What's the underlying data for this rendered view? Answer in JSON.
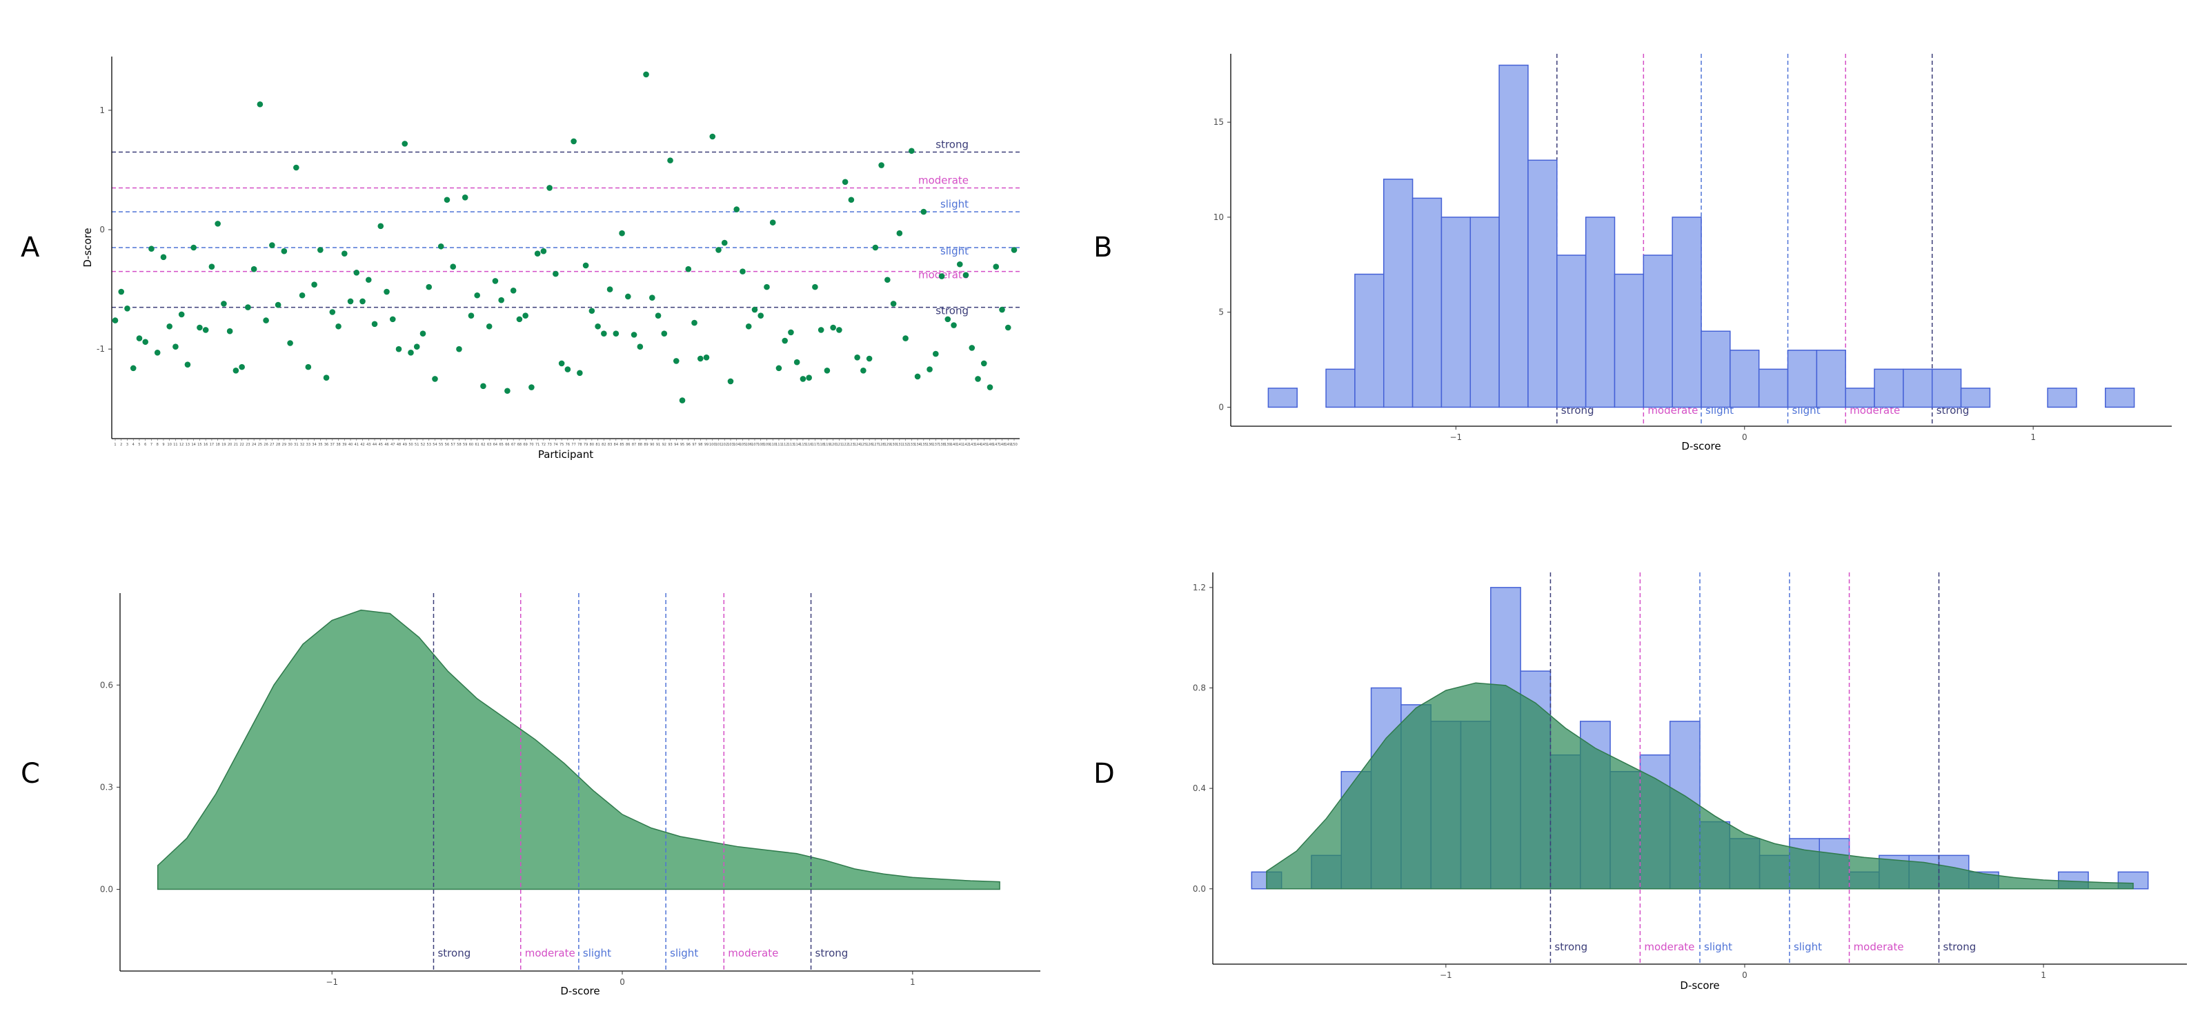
{
  "colors": {
    "point": "#0a8a4f",
    "bar_fill": "#9fb3ef",
    "bar_stroke": "#4561d6",
    "density_fill": "#5aa878",
    "density_stroke": "#2f7a4c",
    "strong": "#3b3d78",
    "moderate": "#d44fc6",
    "slight": "#4f73d6"
  },
  "thresholds": {
    "values": [
      -0.65,
      -0.35,
      -0.15,
      0.15,
      0.35,
      0.65
    ],
    "labels": [
      "strong",
      "moderate",
      "slight",
      "slight",
      "moderate",
      "strong"
    ],
    "levels": [
      "strong",
      "moderate",
      "slight",
      "slight",
      "moderate",
      "strong"
    ]
  },
  "chart_data": [
    {
      "panel": "A",
      "type": "scatter",
      "xlabel": "Participant",
      "ylabel": "D-score",
      "yticks": [
        -1,
        0,
        1
      ],
      "ylim": [
        -1.75,
        1.45
      ],
      "values": [
        -0.76,
        -0.52,
        -0.66,
        -1.16,
        -0.91,
        -0.94,
        -0.16,
        -1.03,
        -0.23,
        -0.81,
        -0.98,
        -0.71,
        -1.13,
        -0.15,
        -0.82,
        -0.84,
        -0.31,
        0.05,
        -0.62,
        -0.85,
        -1.18,
        -1.15,
        -0.65,
        -0.33,
        1.05,
        -0.76,
        -0.13,
        -0.63,
        -0.18,
        -0.95,
        0.52,
        -0.55,
        -1.15,
        -0.46,
        -0.17,
        -1.24,
        -0.69,
        -0.81,
        -0.2,
        -0.6,
        -0.36,
        -0.6,
        -0.42,
        -0.79,
        0.03,
        -0.52,
        -0.75,
        -1.0,
        0.72,
        -1.03,
        -0.98,
        -0.87,
        -0.48,
        -1.25,
        -0.14,
        0.25,
        -0.31,
        -1.0,
        0.27,
        -0.72,
        -0.55,
        -1.31,
        -0.81,
        -0.43,
        -0.59,
        -1.35,
        -0.51,
        -0.75,
        -0.72,
        -1.32,
        -0.2,
        -0.18,
        0.35,
        -0.37,
        -1.12,
        -1.17,
        0.74,
        -1.2,
        -0.3,
        -0.68,
        -0.81,
        -0.87,
        -0.5,
        -0.87,
        -0.03,
        -0.56,
        -0.88,
        -0.98,
        1.3,
        -0.57,
        -0.72,
        -0.87,
        0.58,
        -1.1,
        -1.43,
        -0.33,
        -0.78,
        -1.08,
        -1.07,
        0.78,
        -0.17,
        -0.11,
        -1.27,
        0.17,
        -0.35,
        -0.81,
        -0.67,
        -0.72,
        -0.48,
        0.06,
        -1.16,
        -0.93,
        -0.86,
        -1.11,
        -1.25,
        -1.24,
        -0.48,
        -0.84,
        -1.18,
        -0.82,
        -0.84,
        0.4,
        0.25,
        -1.07,
        -1.18,
        -1.08,
        -0.15,
        0.54,
        -0.42,
        -0.62,
        -0.03,
        -0.91,
        0.66,
        -1.23,
        0.15,
        -1.17,
        -1.04,
        -0.39,
        -0.75,
        -0.8,
        -0.29,
        -0.38,
        -0.99,
        -1.25,
        -1.12,
        -1.32,
        -0.31,
        -0.67,
        -0.82,
        -0.17
      ]
    },
    {
      "panel": "B",
      "type": "bar",
      "xlabel": "D-score",
      "ylabel": "",
      "xticks": [
        -1,
        0,
        1
      ],
      "yticks": [
        0,
        5,
        10,
        15
      ],
      "xlim": [
        -1.78,
        1.48
      ],
      "ylim": [
        -1,
        18.6
      ],
      "bin_width": 0.1,
      "bin_start": -1.65,
      "counts": [
        1,
        0,
        2,
        7,
        12,
        11,
        10,
        10,
        18,
        13,
        8,
        10,
        7,
        8,
        10,
        4,
        3,
        2,
        3,
        3,
        1,
        2,
        2,
        2,
        1,
        0,
        0,
        1,
        0,
        1
      ]
    },
    {
      "panel": "C",
      "type": "area",
      "xlabel": "D-score",
      "ylabel": "",
      "xticks": [
        -1,
        0,
        1
      ],
      "yticks": [
        0.0,
        0.3,
        0.6
      ],
      "xlim": [
        -1.73,
        1.44
      ],
      "ylim": [
        -0.24,
        0.87
      ],
      "x": [
        -1.6,
        -1.5,
        -1.4,
        -1.3,
        -1.2,
        -1.1,
        -1.0,
        -0.9,
        -0.8,
        -0.7,
        -0.6,
        -0.5,
        -0.4,
        -0.3,
        -0.2,
        -0.1,
        0.0,
        0.1,
        0.2,
        0.3,
        0.4,
        0.5,
        0.6,
        0.7,
        0.8,
        0.9,
        1.0,
        1.1,
        1.2,
        1.3
      ],
      "y": [
        0.07,
        0.15,
        0.28,
        0.44,
        0.6,
        0.72,
        0.79,
        0.82,
        0.81,
        0.74,
        0.64,
        0.56,
        0.5,
        0.44,
        0.37,
        0.29,
        0.22,
        0.18,
        0.155,
        0.14,
        0.125,
        0.115,
        0.105,
        0.085,
        0.06,
        0.045,
        0.035,
        0.03,
        0.025,
        0.022
      ]
    },
    {
      "panel": "D",
      "type": "bar",
      "xlabel": "D-score",
      "ylabel": "",
      "xticks": [
        -1,
        0,
        1
      ],
      "yticks": [
        0.0,
        0.4,
        0.8,
        1.2
      ],
      "xlim": [
        -1.78,
        1.48
      ],
      "ylim": [
        -0.3,
        1.26
      ],
      "bin_width": 0.1,
      "bin_start": -1.65,
      "densities": [
        0.067,
        0,
        0.133,
        0.467,
        0.8,
        0.733,
        0.667,
        0.667,
        1.2,
        0.867,
        0.533,
        0.667,
        0.467,
        0.533,
        0.667,
        0.267,
        0.2,
        0.133,
        0.2,
        0.2,
        0.067,
        0.133,
        0.133,
        0.133,
        0.067,
        0,
        0,
        0.067,
        0,
        0.067
      ],
      "density_x": [
        -1.6,
        -1.5,
        -1.4,
        -1.3,
        -1.2,
        -1.1,
        -1.0,
        -0.9,
        -0.8,
        -0.7,
        -0.6,
        -0.5,
        -0.4,
        -0.3,
        -0.2,
        -0.1,
        0.0,
        0.1,
        0.2,
        0.3,
        0.4,
        0.5,
        0.6,
        0.7,
        0.8,
        0.9,
        1.0,
        1.1,
        1.2,
        1.3
      ],
      "density_y": [
        0.07,
        0.15,
        0.28,
        0.44,
        0.6,
        0.72,
        0.79,
        0.82,
        0.81,
        0.74,
        0.64,
        0.56,
        0.5,
        0.44,
        0.37,
        0.29,
        0.22,
        0.18,
        0.155,
        0.14,
        0.125,
        0.115,
        0.105,
        0.085,
        0.06,
        0.045,
        0.035,
        0.03,
        0.025,
        0.022
      ]
    }
  ]
}
